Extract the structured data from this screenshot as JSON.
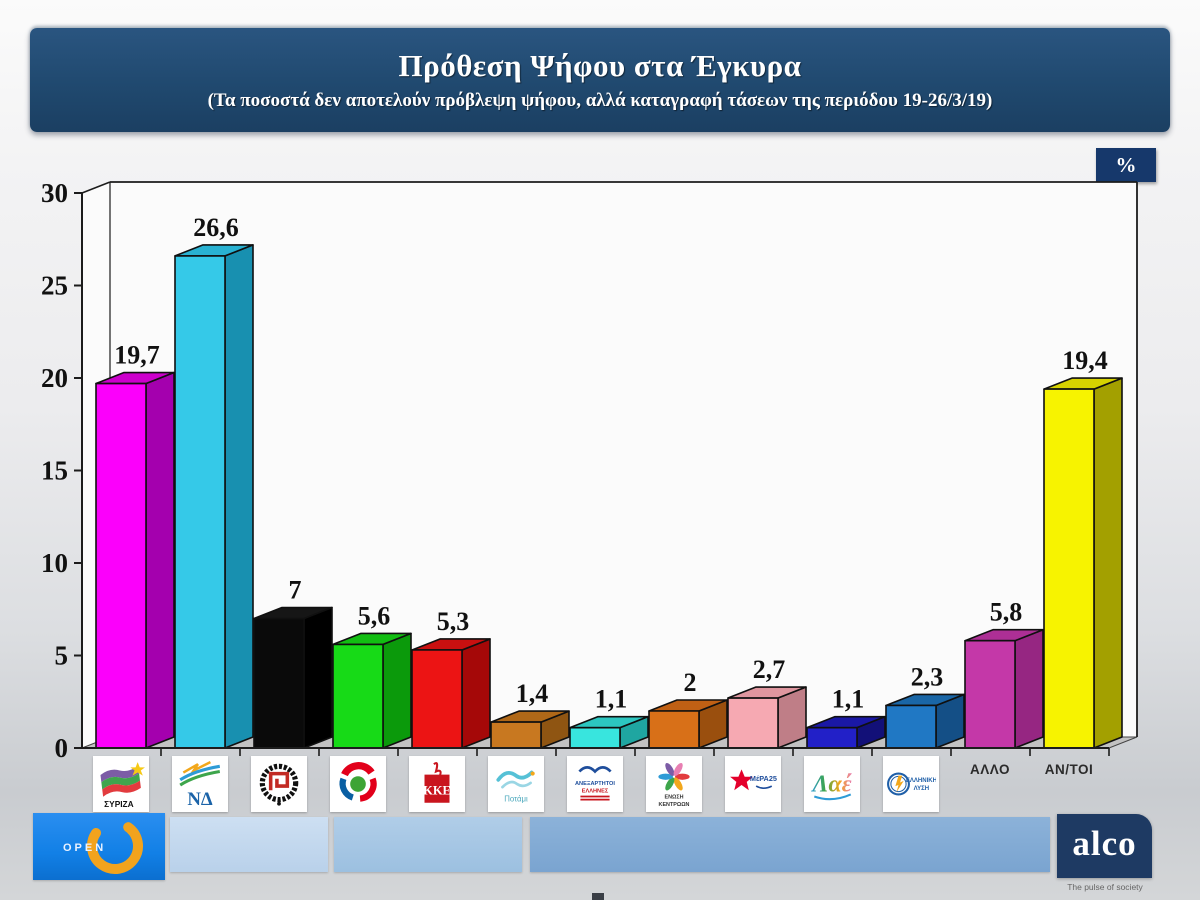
{
  "title": {
    "main": "Πρόθεση Ψήφου στα Έγκυρα",
    "subtitle": "(Τα ποσοστά δεν αποτελούν πρόβλεψη ψήφου, αλλά καταγραφή τάσεων της περιόδου 19-26/3/19)"
  },
  "unit_badge": "%",
  "chart_data": {
    "type": "bar",
    "style": "3d",
    "title": "Πρόθεση Ψήφου στα Έγκυρα",
    "ylabel": "%",
    "ylim": [
      0,
      30
    ],
    "y_ticks": [
      0,
      5,
      10,
      15,
      20,
      25,
      30
    ],
    "decimal_separator": ",",
    "grid": false,
    "legend": "party logos under x-axis",
    "categories": [
      {
        "id": "syriza",
        "label": "ΣΥΡΙΖΑ",
        "logo_caption": "ΣΥΡΙΖΑ",
        "value": 19.7,
        "color": "#fb00fb",
        "side_color": "#a400ae",
        "top_color": "#cc00cc"
      },
      {
        "id": "nd",
        "label": "ΝΔ",
        "logo_caption": "ΝΔ",
        "value": 26.6,
        "color": "#35c9e8",
        "side_color": "#1890b0",
        "top_color": "#29b2d2"
      },
      {
        "id": "xrysi-avgi",
        "label": "ΧΡΥΣΗ ΑΥΓΗ",
        "logo_caption": "",
        "value": 7,
        "color": "#0a0a0a",
        "side_color": "#000000",
        "top_color": "#161616"
      },
      {
        "id": "kinal",
        "label": "ΚΙΝΗΜΑ ΑΛΛΑΓΗΣ",
        "logo_caption": "",
        "value": 5.6,
        "color": "#17da17",
        "side_color": "#0b9a0b",
        "top_color": "#12bd12"
      },
      {
        "id": "kke",
        "label": "ΚΚΕ",
        "logo_caption": "ΚΚΕ",
        "value": 5.3,
        "color": "#ec1414",
        "side_color": "#a50808",
        "top_color": "#c91010"
      },
      {
        "id": "potami",
        "label": "ΤΟ ΠΟΤΑΜΙ",
        "logo_caption": "Ποτάμι",
        "value": 1.4,
        "color": "#c87820",
        "side_color": "#8f5512",
        "top_color": "#b06818"
      },
      {
        "id": "anel",
        "label": "ΑΝΕΛ",
        "logo_caption": "ΑΝΕΞΑΡΤΗΤΟΙ ΕΛΛΗΝΕΣ",
        "value": 1.1,
        "color": "#38e5de",
        "side_color": "#1fa6a1",
        "top_color": "#2cc6c0"
      },
      {
        "id": "enosi-kentroon",
        "label": "ΕΝΩΣΗ ΚΕΝΤΡΩΩΝ",
        "logo_caption": "ΕΝΩΣΗ ΚΕΝΤΡΩΩΝ",
        "value": 2,
        "color": "#d87018",
        "side_color": "#9a4f0e",
        "top_color": "#c06014"
      },
      {
        "id": "mera25",
        "label": "ΜέΡΑ25",
        "logo_caption": "ΜέΡΑ25",
        "value": 2.7,
        "color": "#f6a9b2",
        "side_color": "#bf7e87",
        "top_color": "#df969f"
      },
      {
        "id": "lae",
        "label": "ΛΑΕ",
        "logo_caption": "Λαέ",
        "value": 1.1,
        "color": "#2220c8",
        "side_color": "#121078",
        "top_color": "#1a18a6"
      },
      {
        "id": "elliniki-lysi",
        "label": "ΕΛΛΗΝΙΚΗ ΛΥΣΗ",
        "logo_caption": "ΕΛΛΗΝΙΚΗ ΛΥΣΗ",
        "value": 2.3,
        "color": "#2078c4",
        "side_color": "#144f86",
        "top_color": "#1a66a6"
      },
      {
        "id": "allo",
        "label": "ΑΛΛΟ",
        "logo_caption": "",
        "value": 5.8,
        "color": "#c438a8",
        "side_color": "#962682",
        "top_color": "#ad2f95"
      },
      {
        "id": "anapofasistoi",
        "label": "ΑΝ/ΤΟΙ",
        "logo_caption": "",
        "value": 19.4,
        "color": "#f7f300",
        "side_color": "#a3a000",
        "top_color": "#d6d200"
      }
    ]
  },
  "footer": {
    "open_label": "OPEN",
    "alco_label": "alco",
    "alco_tagline": "The pulse of society"
  }
}
